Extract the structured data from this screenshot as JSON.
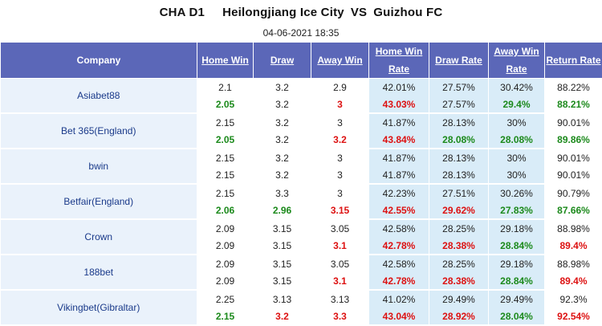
{
  "header": {
    "league": "CHA D1",
    "home_team": "Heilongjiang Ice City",
    "vs": "VS",
    "away_team": "Guizhou FC",
    "datetime": "04-06-2021 18:35"
  },
  "columns": [
    "Company",
    "Home Win",
    "Draw",
    "Away Win",
    "Home Win Rate",
    "Draw Rate",
    "Away Win Rate",
    "Return Rate"
  ],
  "rows": [
    {
      "company": "Asiabet88",
      "open": [
        "2.1",
        "3.2",
        "2.9",
        "42.01%",
        "27.57%",
        "30.42%",
        "88.22%"
      ],
      "live": [
        "2.05",
        "3.2",
        "3",
        "43.03%",
        "27.57%",
        "29.4%",
        "88.21%"
      ],
      "live_colors": [
        "green",
        "",
        "red",
        "red",
        "",
        "green",
        "green"
      ]
    },
    {
      "company": "Bet 365(England)",
      "open": [
        "2.15",
        "3.2",
        "3",
        "41.87%",
        "28.13%",
        "30%",
        "90.01%"
      ],
      "live": [
        "2.05",
        "3.2",
        "3.2",
        "43.84%",
        "28.08%",
        "28.08%",
        "89.86%"
      ],
      "live_colors": [
        "green",
        "",
        "red",
        "red",
        "green",
        "green",
        "green"
      ]
    },
    {
      "company": "bwin",
      "open": [
        "2.15",
        "3.2",
        "3",
        "41.87%",
        "28.13%",
        "30%",
        "90.01%"
      ],
      "live": [
        "2.15",
        "3.2",
        "3",
        "41.87%",
        "28.13%",
        "30%",
        "90.01%"
      ],
      "live_colors": [
        "",
        "",
        "",
        "",
        "",
        "",
        ""
      ]
    },
    {
      "company": "Betfair(England)",
      "open": [
        "2.15",
        "3.3",
        "3",
        "42.23%",
        "27.51%",
        "30.26%",
        "90.79%"
      ],
      "live": [
        "2.06",
        "2.96",
        "3.15",
        "42.55%",
        "29.62%",
        "27.83%",
        "87.66%"
      ],
      "live_colors": [
        "green",
        "green",
        "red",
        "red",
        "red",
        "green",
        "green"
      ]
    },
    {
      "company": "Crown",
      "open": [
        "2.09",
        "3.15",
        "3.05",
        "42.58%",
        "28.25%",
        "29.18%",
        "88.98%"
      ],
      "live": [
        "2.09",
        "3.15",
        "3.1",
        "42.78%",
        "28.38%",
        "28.84%",
        "89.4%"
      ],
      "live_colors": [
        "",
        "",
        "red",
        "red",
        "red",
        "green",
        "red"
      ]
    },
    {
      "company": "188bet",
      "open": [
        "2.09",
        "3.15",
        "3.05",
        "42.58%",
        "28.25%",
        "29.18%",
        "88.98%"
      ],
      "live": [
        "2.09",
        "3.15",
        "3.1",
        "42.78%",
        "28.38%",
        "28.84%",
        "89.4%"
      ],
      "live_colors": [
        "",
        "",
        "red",
        "red",
        "red",
        "green",
        "red"
      ]
    },
    {
      "company": "Vikingbet(Gibraltar)",
      "open": [
        "2.25",
        "3.13",
        "3.13",
        "41.02%",
        "29.49%",
        "29.49%",
        "92.3%"
      ],
      "live": [
        "2.15",
        "3.2",
        "3.3",
        "43.04%",
        "28.92%",
        "28.04%",
        "92.54%"
      ],
      "live_colors": [
        "green",
        "red",
        "red",
        "red",
        "red",
        "green",
        "red"
      ]
    }
  ]
}
